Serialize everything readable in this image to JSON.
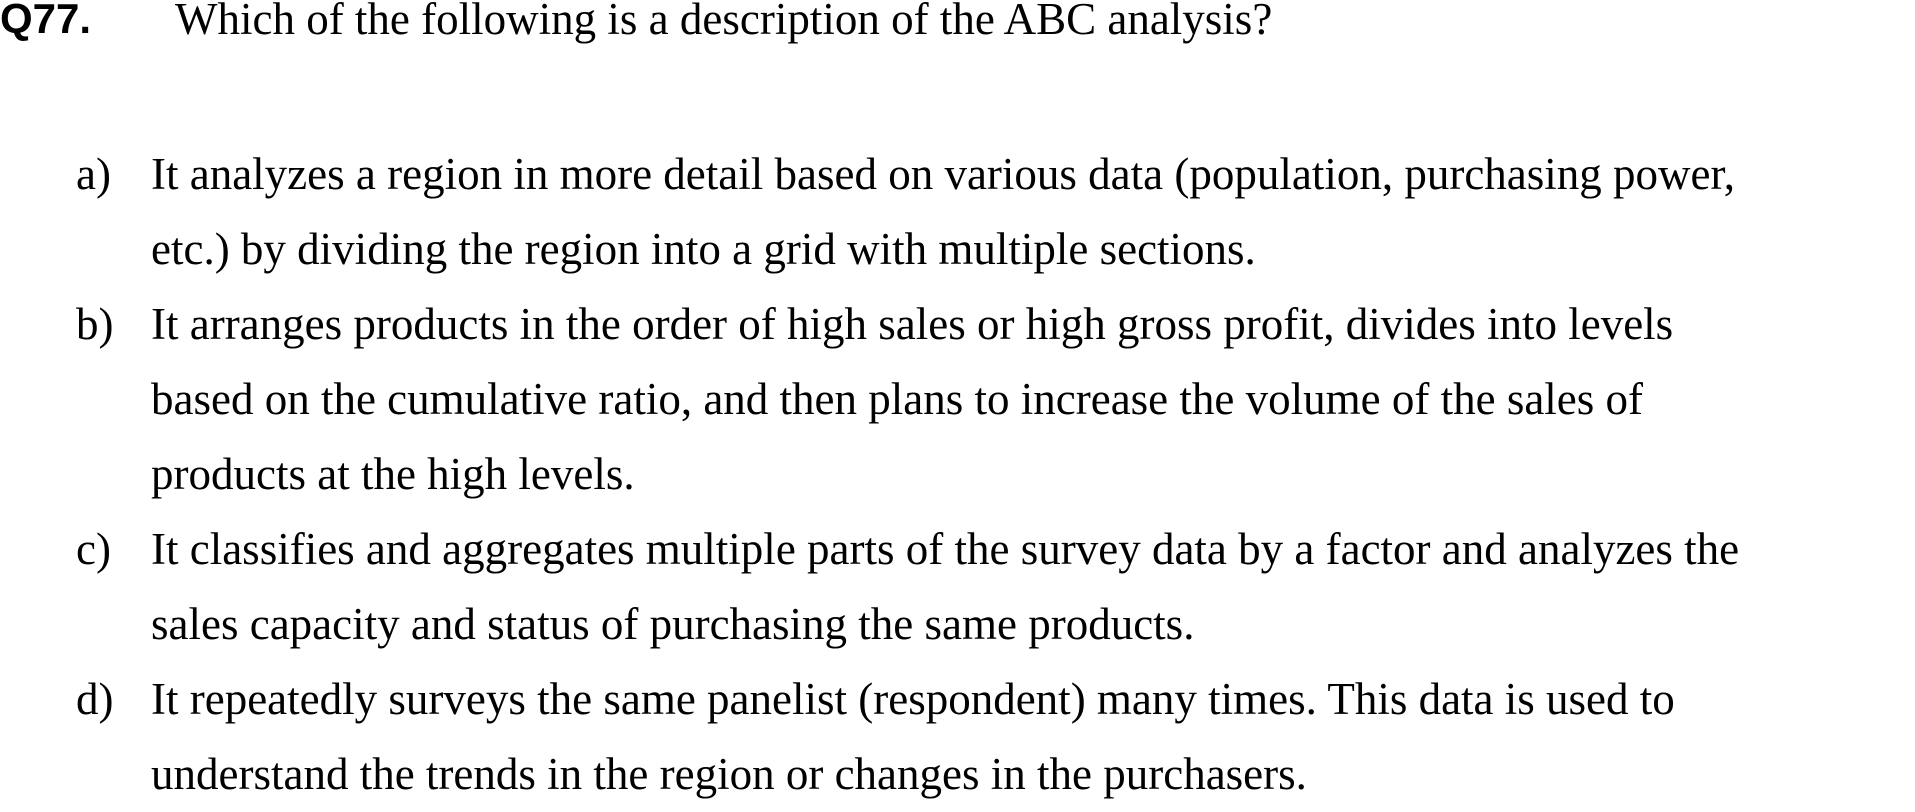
{
  "question": {
    "number": "Q77.",
    "text": "Which of the following is a description of the ABC analysis?"
  },
  "options": [
    {
      "letter": "a)",
      "lines": [
        "It analyzes a region in more detail based on various data (population, purchasing power,",
        "etc.) by dividing the region into a grid with multiple sections."
      ]
    },
    {
      "letter": "b)",
      "lines": [
        "It arranges products in the order of high sales or high gross profit, divides into levels",
        "based on the cumulative ratio, and then plans to increase the volume of the sales of",
        "products at the high levels."
      ]
    },
    {
      "letter": "c)",
      "lines": [
        "It classifies and aggregates multiple parts of the survey data by a factor and analyzes the",
        "sales capacity and status of purchasing the same products."
      ]
    },
    {
      "letter": "d)",
      "lines": [
        "It repeatedly surveys the same panelist (respondent) many times. This data is used to",
        "understand the trends in the region or changes in the purchasers."
      ]
    }
  ]
}
